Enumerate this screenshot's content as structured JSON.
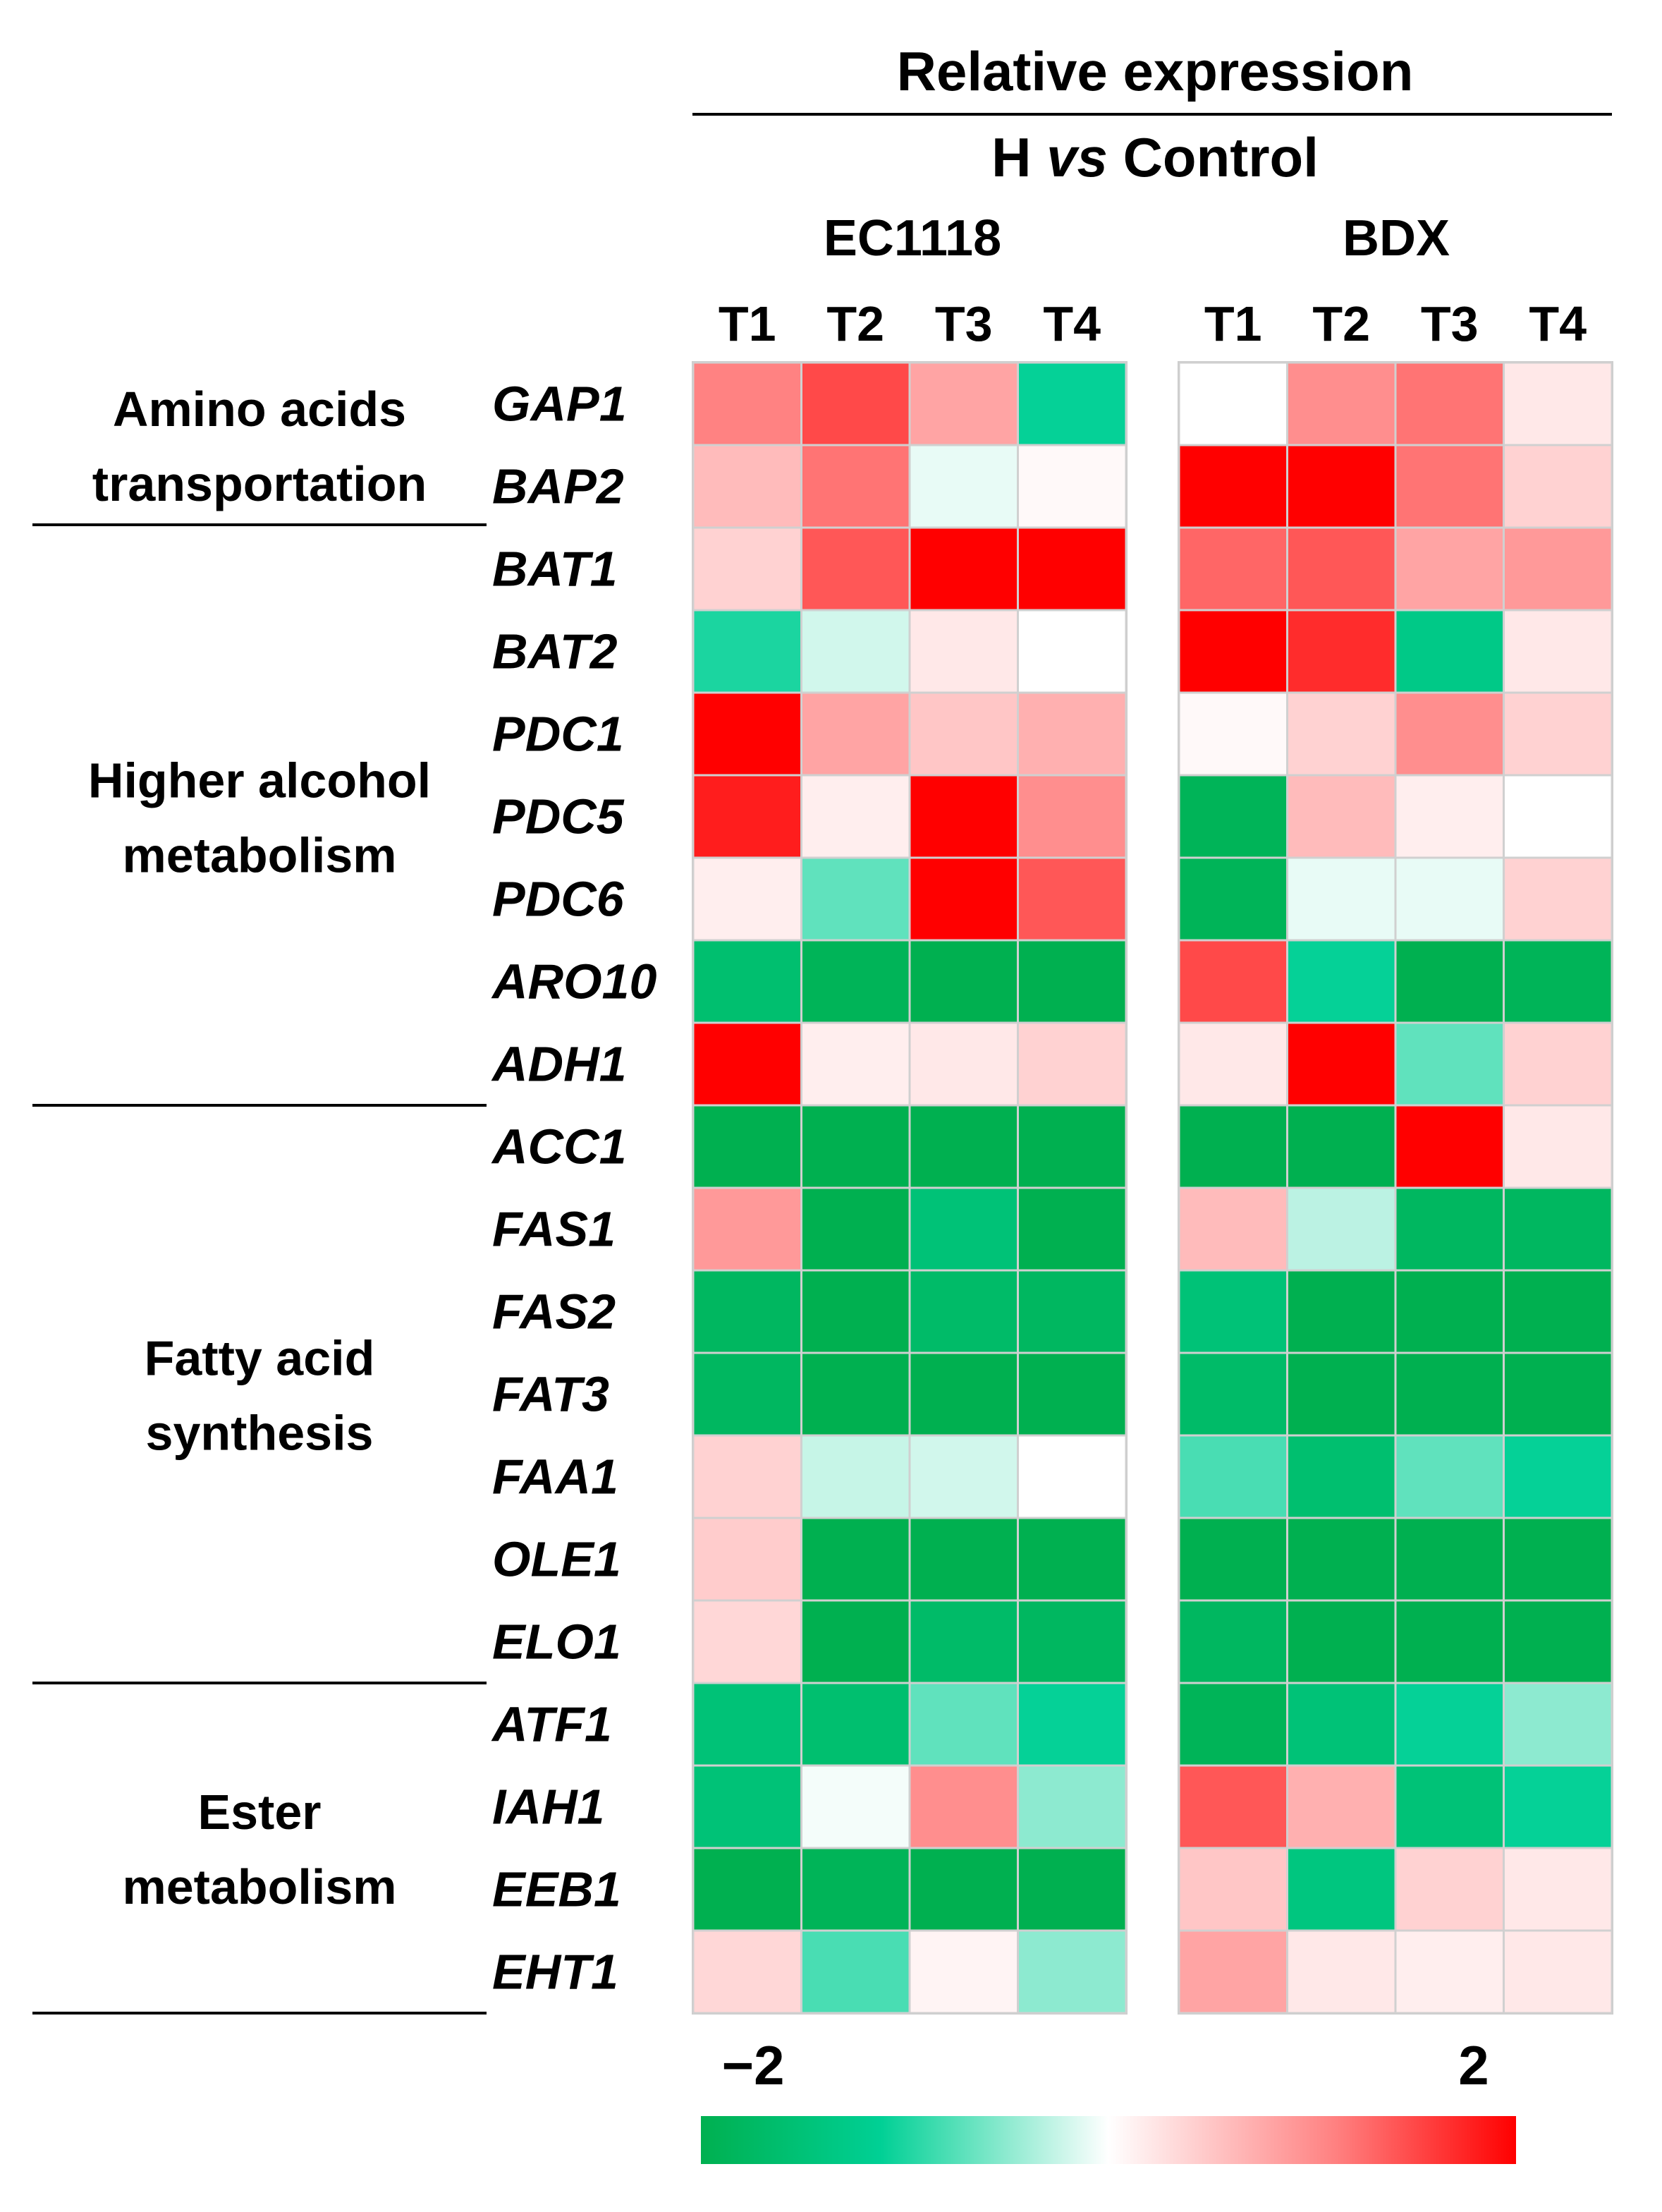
{
  "chart_data": {
    "type": "heatmap",
    "title": "Relative expression",
    "comparison": {
      "prefix": "H",
      "italic": "vs",
      "suffix": "Control"
    },
    "strains": [
      {
        "name": "EC1118",
        "timepoints": [
          "T1",
          "T2",
          "T3",
          "T4"
        ]
      },
      {
        "name": "BDX",
        "timepoints": [
          "T1",
          "T2",
          "T3",
          "T4"
        ]
      }
    ],
    "genes": [
      "GAP1",
      "BAP2",
      "BAT1",
      "BAT2",
      "PDC1",
      "PDC5",
      "PDC6",
      "ARO10",
      "ADH1",
      "ACC1",
      "FAS1",
      "FAS2",
      "FAT3",
      "FAA1",
      "OLE1",
      "ELO1",
      "ATF1",
      "IAH1",
      "EEB1",
      "EHT1"
    ],
    "groups": [
      {
        "lines": [
          "Amino acids",
          "transportation"
        ],
        "start": 0,
        "end": 1
      },
      {
        "lines": [
          "Higher alcohol",
          "metabolism"
        ],
        "start": 2,
        "end": 8
      },
      {
        "lines": [
          "Fatty acid",
          "synthesis"
        ],
        "start": 9,
        "end": 15
      },
      {
        "lines": [
          "Ester",
          "metabolism"
        ],
        "start": 16,
        "end": 19
      }
    ],
    "values": [
      [
        1.1,
        1.5,
        0.8,
        -1.1,
        0.0,
        1.0,
        1.2,
        0.2
      ],
      [
        0.6,
        1.2,
        -0.1,
        0.05,
        2.0,
        2.0,
        1.2,
        0.4
      ],
      [
        0.4,
        1.4,
        2.0,
        2.0,
        1.3,
        1.4,
        0.8,
        0.9
      ],
      [
        -1.0,
        -0.2,
        0.2,
        0.0,
        2.0,
        1.7,
        -1.3,
        0.2
      ],
      [
        2.0,
        0.8,
        0.5,
        0.7,
        0.05,
        0.4,
        1.0,
        0.4
      ],
      [
        1.8,
        0.15,
        2.0,
        1.0,
        -1.9,
        0.6,
        0.15,
        0.0
      ],
      [
        0.15,
        -0.7,
        2.0,
        1.4,
        -1.9,
        -0.1,
        -0.1,
        0.4
      ],
      [
        -1.6,
        -1.9,
        -2.0,
        -2.0,
        1.5,
        -1.1,
        -2.0,
        -1.9
      ],
      [
        2.0,
        0.15,
        0.2,
        0.4,
        0.2,
        2.0,
        -0.7,
        0.4
      ],
      [
        -2.0,
        -2.0,
        -2.0,
        -2.0,
        -2.0,
        -2.0,
        2.0,
        0.2
      ],
      [
        0.9,
        -2.0,
        -1.5,
        -2.0,
        0.6,
        -0.3,
        -1.8,
        -1.8
      ],
      [
        -1.8,
        -2.0,
        -1.7,
        -1.8,
        -1.5,
        -2.0,
        -2.0,
        -2.0
      ],
      [
        -1.8,
        -2.0,
        -2.0,
        -2.0,
        -1.7,
        -2.0,
        -2.0,
        -2.0
      ],
      [
        0.4,
        -0.25,
        -0.2,
        0.0,
        -0.8,
        -1.6,
        -0.7,
        -1.1
      ],
      [
        0.45,
        -2.0,
        -2.0,
        -2.0,
        -2.0,
        -2.0,
        -2.0,
        -2.0
      ],
      [
        0.35,
        -2.0,
        -1.7,
        -1.8,
        -1.8,
        -2.0,
        -2.0,
        -2.0
      ],
      [
        -1.5,
        -1.6,
        -0.7,
        -1.1,
        -1.9,
        -1.5,
        -1.1,
        -0.5
      ],
      [
        -1.5,
        -0.05,
        1.0,
        -0.5,
        1.4,
        0.7,
        -1.5,
        -1.1
      ],
      [
        -2.0,
        -1.9,
        -2.0,
        -2.0,
        0.5,
        -1.4,
        0.4,
        0.2
      ],
      [
        0.35,
        -0.8,
        0.1,
        -0.5,
        0.8,
        0.2,
        0.15,
        0.2
      ]
    ],
    "scale": {
      "min": -2,
      "max": 2,
      "min_label": "−2",
      "max_label": "2"
    },
    "colors": {
      "low": "#00b050",
      "low_mid": "#00d095",
      "mid": "#ffffff",
      "high_mid": "#ff8080",
      "high": "#ff0000"
    }
  }
}
